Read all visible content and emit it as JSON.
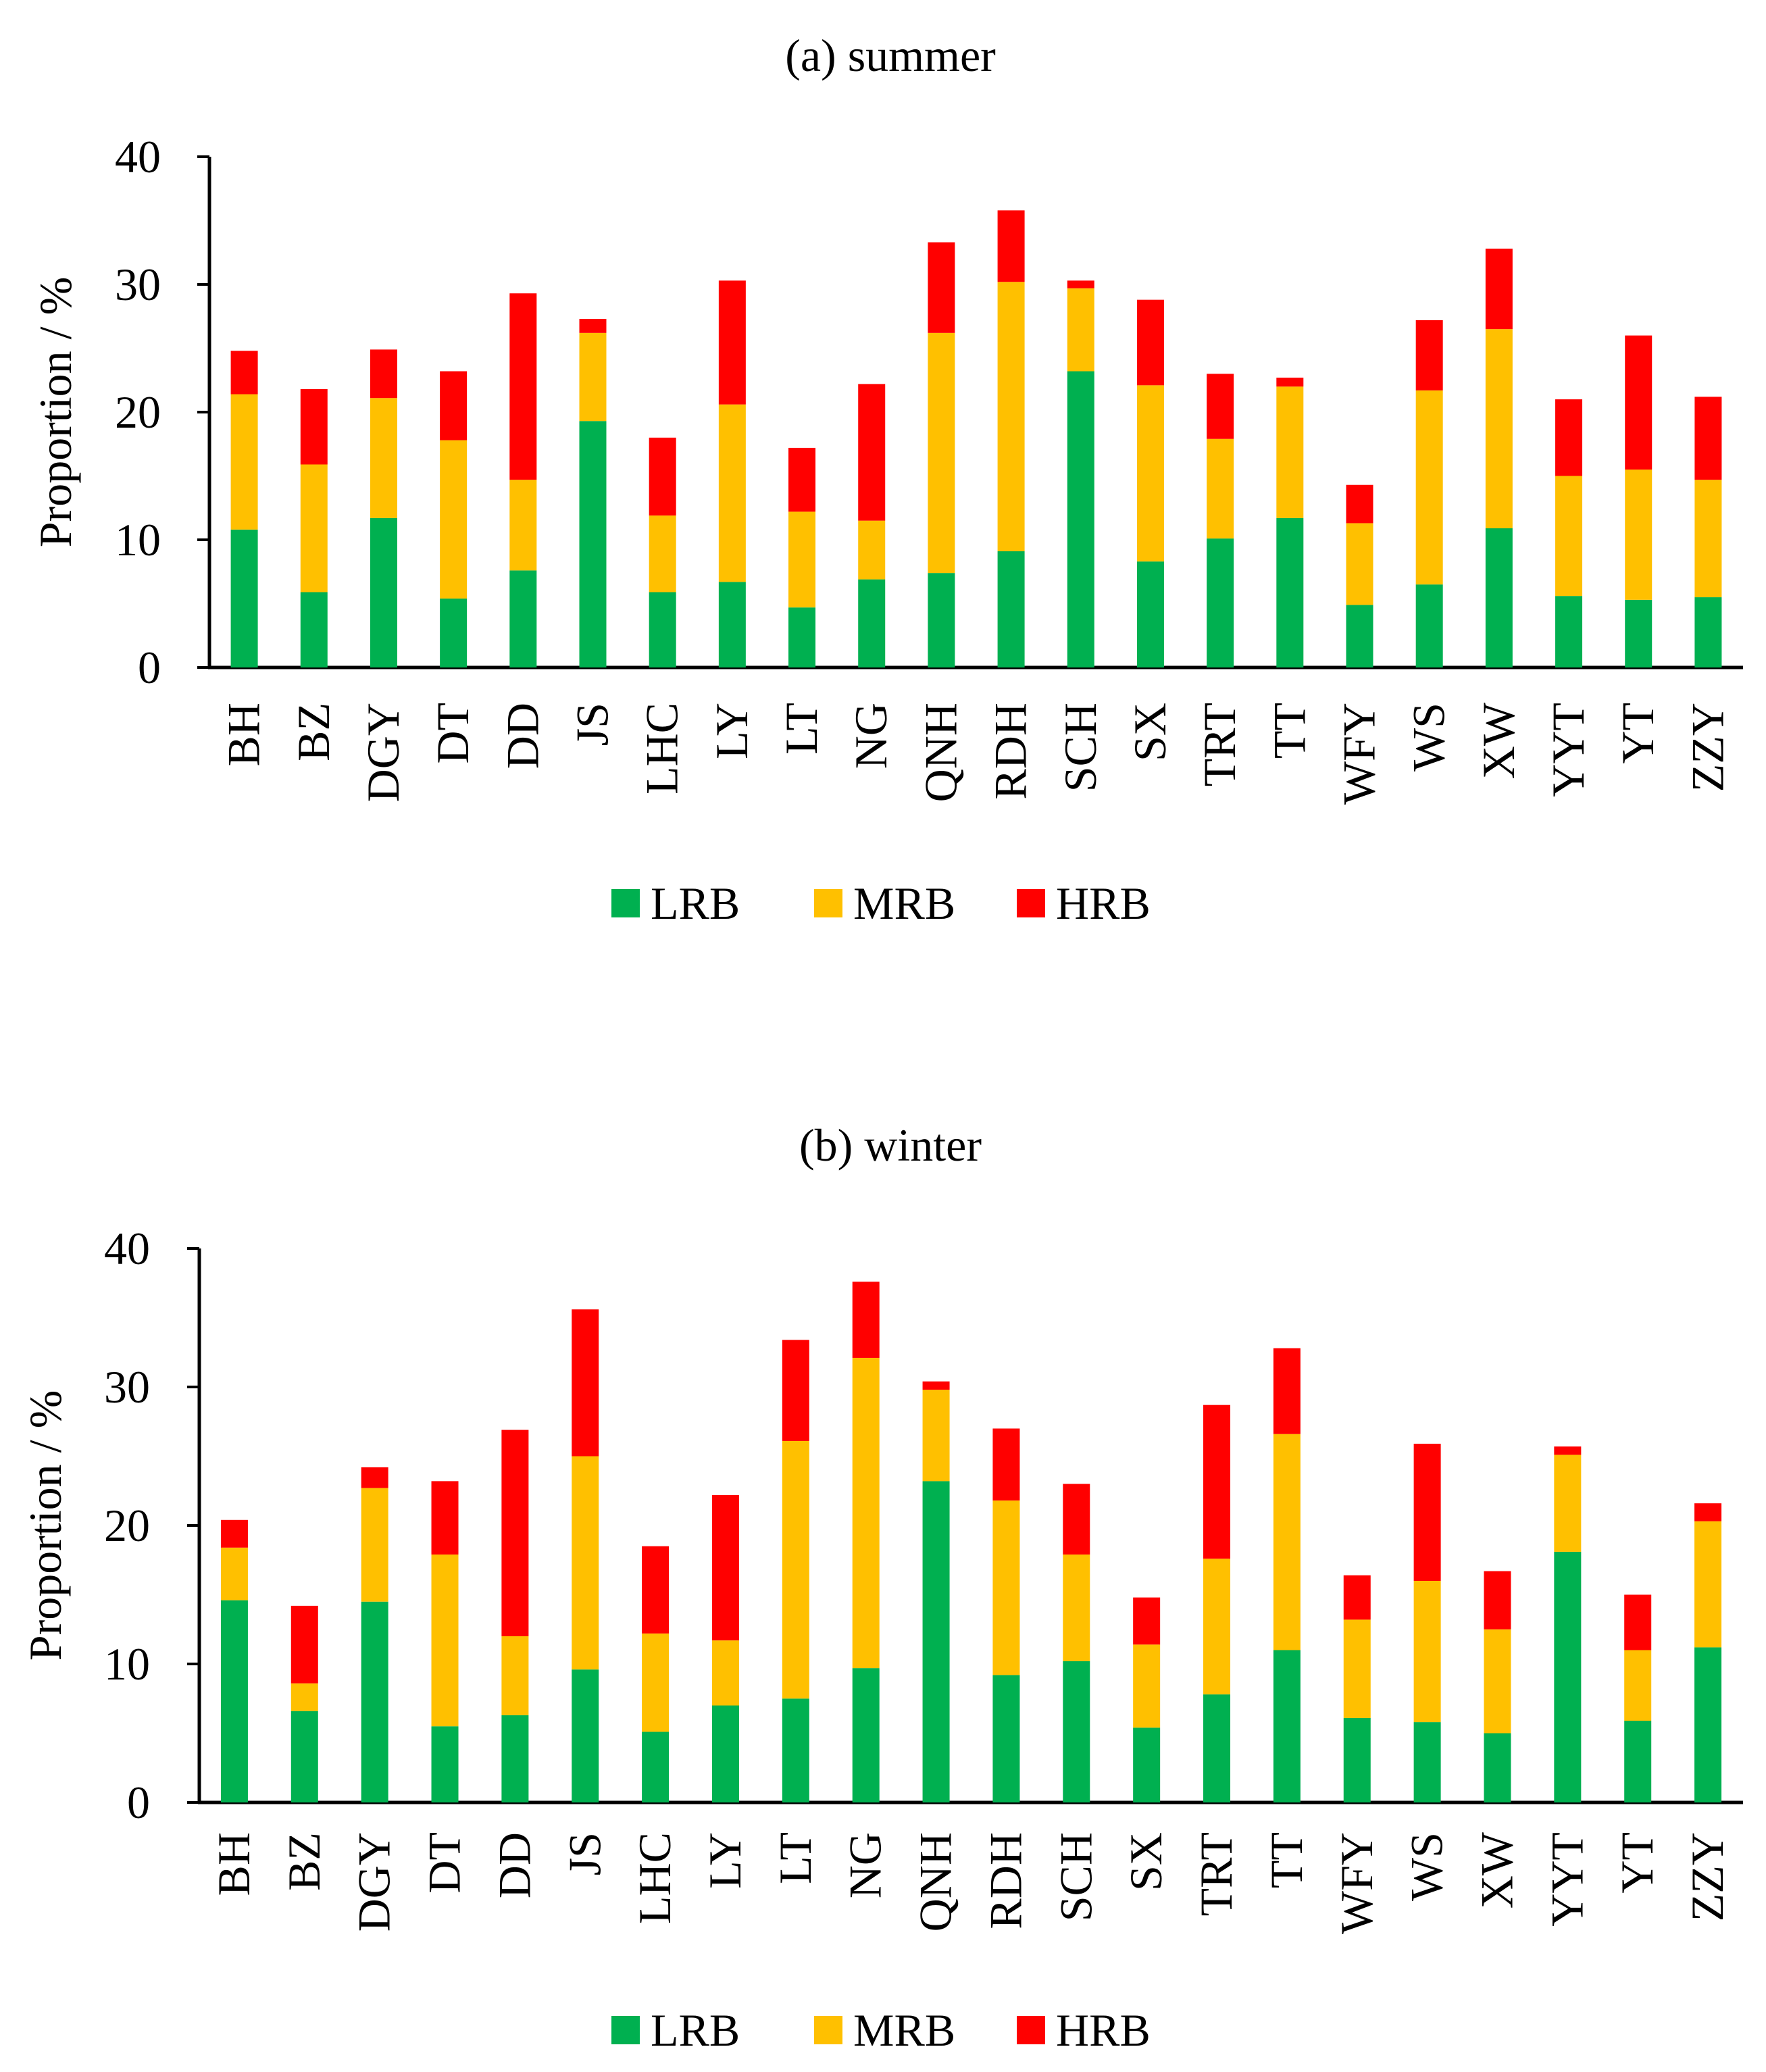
{
  "colors": {
    "LRB": "#00B050",
    "MRB": "#FFC000",
    "HRB": "#FF0000",
    "axis": "#000000"
  },
  "chart_data": [
    {
      "type": "bar",
      "stacked": true,
      "title": "(a) summer",
      "xlabel": "",
      "ylabel": "Proportion / %",
      "ylim": [
        0,
        40
      ],
      "yticks": [
        0,
        10,
        20,
        30,
        40
      ],
      "grid": false,
      "legend_position": "bottom",
      "categories": [
        "BH",
        "BZ",
        "DGY",
        "DT",
        "DD",
        "JS",
        "LHC",
        "LY",
        "LT",
        "NG",
        "QNH",
        "RDH",
        "SCH",
        "SX",
        "TRT",
        "TT",
        "WFY",
        "WS",
        "XW",
        "YYT",
        "YT",
        "ZZY"
      ],
      "series": [
        {
          "name": "LRB",
          "values": [
            10.8,
            5.9,
            11.7,
            5.4,
            7.6,
            19.3,
            5.9,
            6.7,
            4.7,
            6.9,
            7.4,
            9.1,
            23.2,
            8.3,
            10.1,
            11.7,
            4.9,
            6.5,
            10.9,
            5.6,
            5.3,
            5.5
          ]
        },
        {
          "name": "MRB",
          "values": [
            10.6,
            10.0,
            9.4,
            12.4,
            7.1,
            6.9,
            6.0,
            13.9,
            7.5,
            4.6,
            18.8,
            21.1,
            6.5,
            13.8,
            7.8,
            10.3,
            6.4,
            15.2,
            15.6,
            9.4,
            10.2,
            9.2
          ]
        },
        {
          "name": "HRB",
          "values": [
            3.4,
            5.9,
            3.8,
            5.4,
            14.6,
            1.1,
            6.1,
            9.7,
            5.0,
            10.7,
            7.1,
            5.6,
            0.6,
            6.7,
            5.1,
            0.7,
            3.0,
            5.5,
            6.3,
            6.0,
            10.5,
            6.5
          ]
        }
      ]
    },
    {
      "type": "bar",
      "stacked": true,
      "title": "(b) winter",
      "xlabel": "",
      "ylabel": "Proportion / %",
      "ylim": [
        0,
        40
      ],
      "yticks": [
        0,
        10,
        20,
        30,
        40
      ],
      "grid": false,
      "legend_position": "bottom",
      "categories": [
        "BH",
        "BZ",
        "DGY",
        "DT",
        "DD",
        "JS",
        "LHC",
        "LY",
        "LT",
        "NG",
        "QNH",
        "RDH",
        "SCH",
        "SX",
        "TRT",
        "TT",
        "WFY",
        "WS",
        "XW",
        "YYT",
        "YT",
        "ZZY"
      ],
      "series": [
        {
          "name": "LRB",
          "values": [
            14.6,
            6.6,
            14.5,
            5.5,
            6.3,
            9.6,
            5.1,
            7.0,
            7.5,
            9.7,
            23.2,
            9.2,
            10.2,
            5.4,
            7.8,
            11.0,
            6.1,
            5.8,
            5.0,
            18.1,
            5.9,
            11.2
          ]
        },
        {
          "name": "MRB",
          "values": [
            3.8,
            2.0,
            8.2,
            12.4,
            5.7,
            15.4,
            7.1,
            4.7,
            18.6,
            22.4,
            6.6,
            12.6,
            7.7,
            6.0,
            9.8,
            15.6,
            7.1,
            10.2,
            7.5,
            7.0,
            5.1,
            9.1
          ]
        },
        {
          "name": "HRB",
          "values": [
            2.0,
            5.6,
            1.5,
            5.3,
            14.9,
            10.6,
            6.3,
            10.5,
            7.3,
            5.5,
            0.6,
            5.2,
            5.1,
            3.4,
            11.1,
            6.2,
            3.2,
            9.9,
            4.2,
            0.6,
            4.0,
            1.3
          ]
        }
      ]
    }
  ]
}
